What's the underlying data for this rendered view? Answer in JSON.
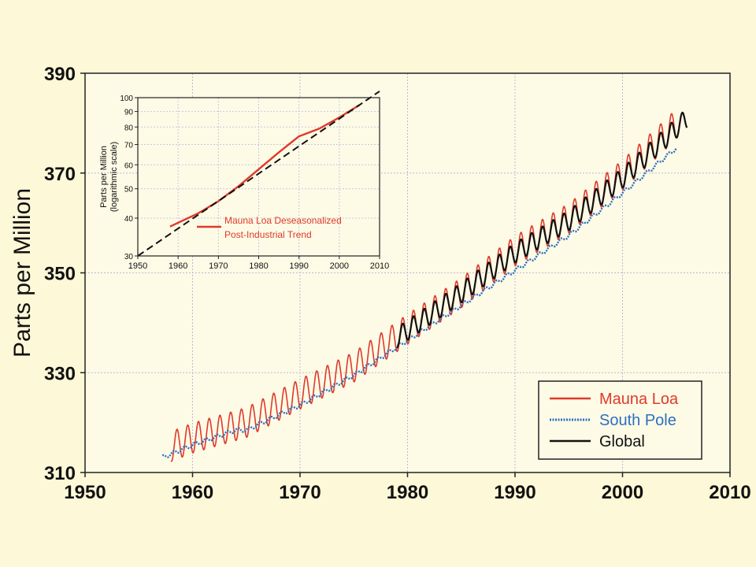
{
  "chart_data": [
    {
      "type": "line",
      "title": "",
      "xlabel": "",
      "ylabel": "Parts per Million",
      "xlim": [
        1950,
        2010
      ],
      "ylim": [
        310,
        390
      ],
      "grid": true,
      "x_ticks": [
        "1950",
        "1960",
        "1970",
        "1980",
        "1990",
        "2000",
        "2010"
      ],
      "y_ticks": [
        "310",
        "330",
        "350",
        "370",
        "390"
      ],
      "legend_position": "bottom-right",
      "series": [
        {
          "name": "Mauna Loa",
          "color": "#e0392b",
          "style": "oscillating",
          "seasonal_amplitude_ppm": 3,
          "trend": {
            "x": [
              1958,
              1960,
              1965,
              1970,
              1975,
              1980,
              1985,
              1990,
              1995,
              2000,
              2005
            ],
            "y": [
              315.2,
              316.9,
              320.0,
              325.7,
              331.1,
              338.7,
              346.0,
              354.4,
              360.9,
              369.6,
              379.8
            ]
          }
        },
        {
          "name": "South Pole",
          "color": "#2f6fc0",
          "style": "dotted",
          "trend": {
            "x": [
              1957.2,
              1960,
              1964,
              1965,
              1970,
              1975,
              1980,
              1985,
              1990,
              1995,
              2000,
              2005
            ],
            "y": [
              313.0,
              315.5,
              318.5,
              318.5,
              323.5,
              329.5,
              336.5,
              343.5,
              350.5,
              357.5,
              366.0,
              375.0
            ]
          }
        },
        {
          "name": "Global",
          "color": "#111111",
          "style": "oscillating",
          "seasonal_amplitude_ppm": 2,
          "trend": {
            "x": [
              1979,
              1980,
              1985,
              1990,
              1995,
              2000,
              2006
            ],
            "y": [
              337.0,
              338.5,
              346.0,
              354.0,
              360.5,
              369.0,
              381.0
            ]
          }
        }
      ]
    },
    {
      "type": "line",
      "title": "",
      "xlabel": "",
      "ylabel": "Parts per Million (logarithmic scale)",
      "y_scale": "log",
      "xlim": [
        1950,
        2010
      ],
      "ylim": [
        30,
        100
      ],
      "grid": true,
      "x_ticks": [
        "1950",
        "1960",
        "1970",
        "1980",
        "1990",
        "2000",
        "2010"
      ],
      "y_ticks": [
        "30",
        "40",
        "50",
        "60",
        "70",
        "80",
        "90",
        "100"
      ],
      "legend_position": "lower-right",
      "series": [
        {
          "name": "Mauna Loa Deseasonalized",
          "color": "#e0392b",
          "x": [
            1958,
            1965,
            1970,
            1975,
            1980,
            1985,
            1990,
            1995,
            2000,
            2005
          ],
          "y": [
            37.5,
            41.5,
            45.5,
            51.0,
            58.0,
            66.0,
            74.5,
            79.0,
            86.0,
            94.5
          ]
        },
        {
          "name": "Post-Industrial Trend",
          "color": "#111111",
          "style": "dashed",
          "x": [
            1950,
            2010
          ],
          "y": [
            30.0,
            105.0
          ]
        }
      ]
    }
  ]
}
